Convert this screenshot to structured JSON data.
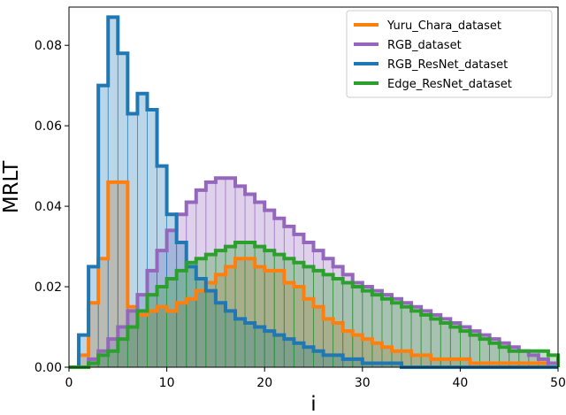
{
  "chart_data": {
    "type": "step-histogram",
    "xlabel": "i",
    "ylabel": "MRLT",
    "xlim": [
      0,
      50
    ],
    "ylim": [
      0,
      0.0895
    ],
    "xticks": [
      0,
      10,
      20,
      30,
      40,
      50
    ],
    "yticks": [
      0.0,
      0.02,
      0.04,
      0.06,
      0.08
    ],
    "ytick_labels": [
      "0.00",
      "0.02",
      "0.04",
      "0.06",
      "0.08"
    ],
    "legend_position": "top-right",
    "bin_width": 1,
    "bin_start": 0,
    "series": [
      {
        "name": "Yuru_Chara_dataset",
        "color": "#ff7f0e",
        "values": [
          0.0,
          0.003,
          0.016,
          0.027,
          0.046,
          0.046,
          0.015,
          0.013,
          0.014,
          0.015,
          0.014,
          0.016,
          0.017,
          0.019,
          0.021,
          0.023,
          0.025,
          0.027,
          0.027,
          0.025,
          0.024,
          0.024,
          0.021,
          0.02,
          0.017,
          0.015,
          0.012,
          0.011,
          0.009,
          0.008,
          0.007,
          0.006,
          0.005,
          0.004,
          0.004,
          0.003,
          0.003,
          0.002,
          0.002,
          0.002,
          0.002,
          0.001,
          0.001,
          0.001,
          0.001,
          0.001,
          0.001,
          0.001,
          0.001,
          0.0
        ]
      },
      {
        "name": "RGB_dataset",
        "color": "#9467bd",
        "values": [
          0.0,
          0.0,
          0.002,
          0.004,
          0.007,
          0.01,
          0.014,
          0.018,
          0.024,
          0.029,
          0.034,
          0.038,
          0.041,
          0.044,
          0.046,
          0.047,
          0.047,
          0.045,
          0.043,
          0.041,
          0.039,
          0.037,
          0.035,
          0.033,
          0.031,
          0.029,
          0.027,
          0.025,
          0.023,
          0.021,
          0.02,
          0.019,
          0.018,
          0.017,
          0.016,
          0.015,
          0.014,
          0.013,
          0.012,
          0.011,
          0.01,
          0.009,
          0.008,
          0.007,
          0.006,
          0.005,
          0.004,
          0.003,
          0.002,
          0.001
        ]
      },
      {
        "name": "RGB_ResNet_dataset",
        "color": "#1f77b4",
        "values": [
          0.0,
          0.008,
          0.025,
          0.07,
          0.087,
          0.078,
          0.063,
          0.068,
          0.064,
          0.05,
          0.038,
          0.031,
          0.025,
          0.022,
          0.019,
          0.016,
          0.014,
          0.012,
          0.011,
          0.01,
          0.009,
          0.008,
          0.007,
          0.006,
          0.005,
          0.004,
          0.003,
          0.003,
          0.002,
          0.002,
          0.001,
          0.001,
          0.001,
          0.001,
          0.0,
          0.0,
          0.0,
          0.0,
          0.0,
          0.0,
          0.0,
          0.0,
          0.0,
          0.0,
          0.0,
          0.0,
          0.0,
          0.0,
          0.0,
          0.0
        ]
      },
      {
        "name": "Edge_ResNet_dataset",
        "color": "#2ca02c",
        "values": [
          0.0,
          0.0,
          0.001,
          0.003,
          0.004,
          0.007,
          0.01,
          0.014,
          0.018,
          0.02,
          0.022,
          0.024,
          0.026,
          0.027,
          0.028,
          0.029,
          0.03,
          0.031,
          0.031,
          0.03,
          0.029,
          0.028,
          0.027,
          0.026,
          0.025,
          0.024,
          0.023,
          0.022,
          0.021,
          0.02,
          0.019,
          0.018,
          0.017,
          0.016,
          0.015,
          0.014,
          0.013,
          0.012,
          0.011,
          0.01,
          0.009,
          0.008,
          0.007,
          0.006,
          0.005,
          0.004,
          0.004,
          0.004,
          0.004,
          0.003
        ]
      }
    ]
  }
}
